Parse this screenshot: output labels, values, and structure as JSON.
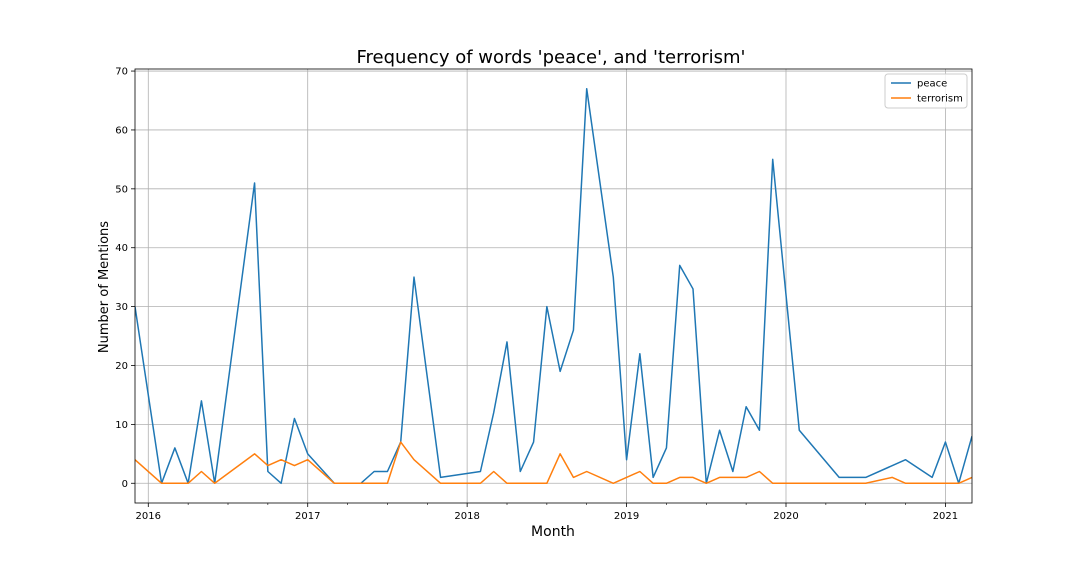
{
  "chart_data": {
    "type": "line",
    "title": "Frequency of words 'peace', and 'terrorism'",
    "xlabel": "Month",
    "ylabel": "Number of Mentions",
    "x_type": "date",
    "xlim": [
      "2015-12",
      "2021-03"
    ],
    "ylim": [
      -3.35,
      70.35
    ],
    "x_ticks": [
      {
        "x": "2016-01",
        "label": "2016"
      },
      {
        "x": "2017-01",
        "label": "2017"
      },
      {
        "x": "2018-01",
        "label": "2018"
      },
      {
        "x": "2019-01",
        "label": "2019"
      },
      {
        "x": "2020-01",
        "label": "2020"
      },
      {
        "x": "2021-01",
        "label": "2021"
      }
    ],
    "y_ticks": [
      0,
      10,
      20,
      30,
      40,
      50,
      60,
      70
    ],
    "grid": true,
    "legend_position": "top-right",
    "series": [
      {
        "name": "peace",
        "color": "#1f77b4",
        "points": [
          [
            "2015-12",
            30
          ],
          [
            "2016-02",
            0
          ],
          [
            "2016-03",
            6
          ],
          [
            "2016-04",
            0
          ],
          [
            "2016-05",
            14
          ],
          [
            "2016-06",
            0
          ],
          [
            "2016-09",
            51
          ],
          [
            "2016-10",
            2
          ],
          [
            "2016-11",
            0
          ],
          [
            "2016-12",
            11
          ],
          [
            "2017-01",
            5
          ],
          [
            "2017-03",
            0
          ],
          [
            "2017-05",
            0
          ],
          [
            "2017-06",
            2
          ],
          [
            "2017-07",
            2
          ],
          [
            "2017-08",
            7
          ],
          [
            "2017-09",
            35
          ],
          [
            "2017-11",
            1
          ],
          [
            "2018-02",
            2
          ],
          [
            "2018-03",
            12
          ],
          [
            "2018-04",
            24
          ],
          [
            "2018-05",
            2
          ],
          [
            "2018-06",
            7
          ],
          [
            "2018-07",
            30
          ],
          [
            "2018-08",
            19
          ],
          [
            "2018-09",
            26
          ],
          [
            "2018-10",
            67
          ],
          [
            "2018-12",
            35
          ],
          [
            "2019-01",
            4
          ],
          [
            "2019-02",
            22
          ],
          [
            "2019-03",
            1
          ],
          [
            "2019-04",
            6
          ],
          [
            "2019-05",
            37
          ],
          [
            "2019-06",
            33
          ],
          [
            "2019-07",
            0
          ],
          [
            "2019-08",
            9
          ],
          [
            "2019-09",
            2
          ],
          [
            "2019-10",
            13
          ],
          [
            "2019-11",
            9
          ],
          [
            "2019-12",
            55
          ],
          [
            "2020-02",
            9
          ],
          [
            "2020-05",
            1
          ],
          [
            "2020-07",
            1
          ],
          [
            "2020-10",
            4
          ],
          [
            "2020-12",
            1
          ],
          [
            "2021-01",
            7
          ],
          [
            "2021-02",
            0
          ],
          [
            "2021-03",
            8
          ]
        ]
      },
      {
        "name": "terrorism",
        "color": "#ff7f0e",
        "points": [
          [
            "2015-12",
            4
          ],
          [
            "2016-02",
            0
          ],
          [
            "2016-04",
            0
          ],
          [
            "2016-05",
            2
          ],
          [
            "2016-06",
            0
          ],
          [
            "2016-09",
            5
          ],
          [
            "2016-10",
            3
          ],
          [
            "2016-11",
            4
          ],
          [
            "2016-12",
            3
          ],
          [
            "2017-01",
            4
          ],
          [
            "2017-03",
            0
          ],
          [
            "2017-07",
            0
          ],
          [
            "2017-08",
            7
          ],
          [
            "2017-09",
            4
          ],
          [
            "2017-11",
            0
          ],
          [
            "2018-02",
            0
          ],
          [
            "2018-03",
            2
          ],
          [
            "2018-04",
            0
          ],
          [
            "2018-07",
            0
          ],
          [
            "2018-08",
            5
          ],
          [
            "2018-09",
            1
          ],
          [
            "2018-10",
            2
          ],
          [
            "2018-12",
            0
          ],
          [
            "2019-02",
            2
          ],
          [
            "2019-03",
            0
          ],
          [
            "2019-04",
            0
          ],
          [
            "2019-05",
            1
          ],
          [
            "2019-06",
            1
          ],
          [
            "2019-07",
            0
          ],
          [
            "2019-08",
            1
          ],
          [
            "2019-10",
            1
          ],
          [
            "2019-11",
            2
          ],
          [
            "2019-12",
            0
          ],
          [
            "2020-07",
            0
          ],
          [
            "2020-09",
            1
          ],
          [
            "2020-10",
            0
          ],
          [
            "2021-02",
            0
          ],
          [
            "2021-03",
            1
          ]
        ]
      }
    ]
  }
}
